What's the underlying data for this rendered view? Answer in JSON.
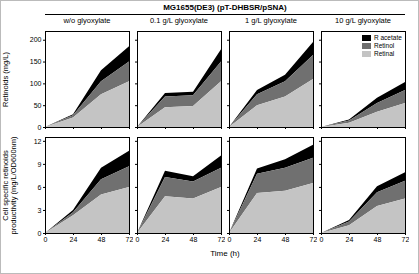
{
  "title": "MG1655(DE3) (pT-DHBSR/pSNA)",
  "x_label": "Time (h)",
  "chart_data": [
    {
      "type": "area",
      "stacked": true,
      "title": "w/o glyoxylate",
      "y_label": "Retinoids (mg/L)",
      "tick_labels": "y",
      "x": [
        0,
        24,
        48,
        72
      ],
      "xlim": [
        0,
        72
      ],
      "xticks": [
        0,
        24,
        48,
        72
      ],
      "ylim": [
        0,
        220
      ],
      "yticks": [
        0,
        50,
        100,
        150,
        200
      ],
      "series": [
        {
          "name": "R acetate",
          "color": "#000000",
          "values": [
            0,
            2,
            25,
            35
          ]
        },
        {
          "name": "Retinol",
          "color": "#707070",
          "values": [
            0,
            5,
            30,
            45
          ]
        },
        {
          "name": "Retinal",
          "color": "#c4c4c4",
          "values": [
            0,
            22,
            75,
            105
          ]
        }
      ]
    },
    {
      "type": "area",
      "stacked": true,
      "title": "0.1 g/L glyoxylate",
      "tick_labels": false,
      "x": [
        0,
        24,
        48,
        72
      ],
      "xlim": [
        0,
        72
      ],
      "xticks": [
        0,
        24,
        48,
        72
      ],
      "ylim": [
        0,
        220
      ],
      "yticks": [
        0,
        50,
        100,
        150,
        200
      ],
      "series": [
        {
          "name": "R acetate",
          "color": "#000000",
          "values": [
            0,
            8,
            8,
            28
          ]
        },
        {
          "name": "Retinol",
          "color": "#707070",
          "values": [
            0,
            25,
            25,
            45
          ]
        },
        {
          "name": "Retinal",
          "color": "#c4c4c4",
          "values": [
            0,
            45,
            48,
            105
          ]
        }
      ]
    },
    {
      "type": "area",
      "stacked": true,
      "title": "1 g/L glyoxylate",
      "tick_labels": false,
      "x": [
        0,
        24,
        48,
        72
      ],
      "xlim": [
        0,
        72
      ],
      "xticks": [
        0,
        24,
        48,
        72
      ],
      "ylim": [
        0,
        220
      ],
      "yticks": [
        0,
        50,
        100,
        150,
        200
      ],
      "series": [
        {
          "name": "R acetate",
          "color": "#000000",
          "values": [
            0,
            10,
            15,
            30
          ]
        },
        {
          "name": "Retinol",
          "color": "#707070",
          "values": [
            0,
            25,
            35,
            55
          ]
        },
        {
          "name": "Retinal",
          "color": "#c4c4c4",
          "values": [
            0,
            50,
            70,
            110
          ]
        }
      ]
    },
    {
      "type": "area",
      "stacked": true,
      "title": "10 g/L glyoxylate",
      "tick_labels": false,
      "legend": "upper right",
      "x": [
        0,
        24,
        48,
        72
      ],
      "xlim": [
        0,
        72
      ],
      "xticks": [
        0,
        24,
        48,
        72
      ],
      "ylim": [
        0,
        220
      ],
      "yticks": [
        0,
        50,
        100,
        150,
        200
      ],
      "series": [
        {
          "name": "R acetate",
          "color": "#000000",
          "values": [
            0,
            2,
            12,
            18
          ]
        },
        {
          "name": "Retinol",
          "color": "#707070",
          "values": [
            0,
            5,
            20,
            30
          ]
        },
        {
          "name": "Retinal",
          "color": "#c4c4c4",
          "values": [
            0,
            10,
            35,
            55
          ]
        }
      ]
    },
    {
      "type": "area",
      "stacked": true,
      "y_label": "Cell specific retinoids productivity (mg/L/OD600nm)",
      "x": [
        0,
        24,
        48,
        72
      ],
      "xlim": [
        0,
        72
      ],
      "xticks": [
        0,
        24,
        48,
        72
      ],
      "ylim": [
        0,
        12.5
      ],
      "yticks": [
        0,
        3,
        6,
        9,
        12
      ],
      "series": [
        {
          "name": "R acetate",
          "color": "#000000",
          "values": [
            0,
            0.3,
            1.5,
            2
          ]
        },
        {
          "name": "Retinol",
          "color": "#707070",
          "values": [
            0,
            0.4,
            2,
            2.7
          ]
        },
        {
          "name": "Retinal",
          "color": "#c4c4c4",
          "values": [
            0,
            2.3,
            5,
            6
          ]
        }
      ]
    },
    {
      "type": "area",
      "stacked": true,
      "tick_labels": "x",
      "x": [
        0,
        24,
        48,
        72
      ],
      "xlim": [
        0,
        72
      ],
      "xticks": [
        0,
        24,
        48,
        72
      ],
      "ylim": [
        0,
        12.5
      ],
      "yticks": [
        0,
        3,
        6,
        9,
        12
      ],
      "series": [
        {
          "name": "R acetate",
          "color": "#000000",
          "values": [
            0,
            0.8,
            0.7,
            1.6
          ]
        },
        {
          "name": "Retinol",
          "color": "#707070",
          "values": [
            0,
            2.5,
            2.2,
            2.5
          ]
        },
        {
          "name": "Retinal",
          "color": "#c4c4c4",
          "values": [
            0,
            4.8,
            4.5,
            6
          ]
        }
      ]
    },
    {
      "type": "area",
      "stacked": true,
      "tick_labels": "x",
      "x": [
        0,
        24,
        48,
        72
      ],
      "xlim": [
        0,
        72
      ],
      "xticks": [
        0,
        24,
        48,
        72
      ],
      "ylim": [
        0,
        12.5
      ],
      "yticks": [
        0,
        3,
        6,
        9,
        12
      ],
      "series": [
        {
          "name": "R acetate",
          "color": "#000000",
          "values": [
            0,
            0.7,
            1.1,
            1.7
          ]
        },
        {
          "name": "Retinol",
          "color": "#707070",
          "values": [
            0,
            2.5,
            3,
            3.3
          ]
        },
        {
          "name": "Retinal",
          "color": "#c4c4c4",
          "values": [
            0,
            5.2,
            5.5,
            6.5
          ]
        }
      ]
    },
    {
      "type": "area",
      "stacked": true,
      "tick_labels": "x",
      "x": [
        0,
        24,
        48,
        72
      ],
      "xlim": [
        0,
        72
      ],
      "xticks": [
        0,
        24,
        48,
        72
      ],
      "ylim": [
        0,
        12.5
      ],
      "yticks": [
        0,
        3,
        6,
        9,
        12
      ],
      "series": [
        {
          "name": "R acetate",
          "color": "#000000",
          "values": [
            0,
            0.2,
            0.8,
            1.1
          ]
        },
        {
          "name": "Retinol",
          "color": "#707070",
          "values": [
            0,
            0.5,
            1.8,
            2.3
          ]
        },
        {
          "name": "Retinal",
          "color": "#c4c4c4",
          "values": [
            0,
            1,
            3.5,
            4.5
          ]
        }
      ]
    }
  ]
}
